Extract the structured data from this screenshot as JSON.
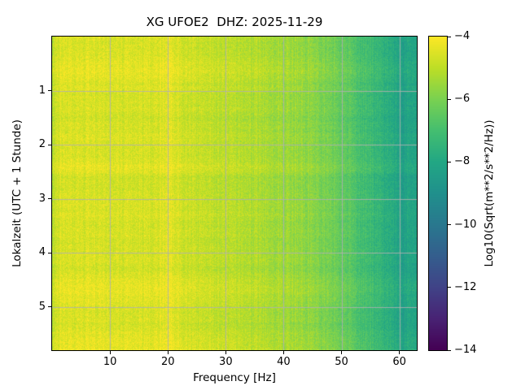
{
  "chart_data": {
    "type": "heatmap",
    "subtype": "spectrogram",
    "title": "XG UFOE2  DHZ: 2025-11-29",
    "xlabel": "Frequency [Hz]",
    "ylabel": "Lokalzeit (UTC + 1 Stunde)",
    "x_range": [
      0,
      63
    ],
    "y_range": [
      0,
      5.8
    ],
    "x_ticks": [
      10,
      20,
      30,
      40,
      50,
      60
    ],
    "x_tick_labels": [
      "10",
      "20",
      "30",
      "40",
      "50",
      "60"
    ],
    "y_ticks": [
      1,
      2,
      3,
      4,
      5
    ],
    "y_tick_labels": [
      "1",
      "2",
      "3",
      "4",
      "5"
    ],
    "grid": true,
    "grid_color": "#b0b0b0",
    "colormap": "viridis",
    "colorbar": {
      "label": "Log10(Sqrt(m**2/s**2/Hz))",
      "position": "right",
      "vmin": -14,
      "vmax": -4,
      "ticks": [
        -4,
        -6,
        -8,
        -10,
        -12,
        -14
      ],
      "tick_labels": [
        "−4",
        "−6",
        "−8",
        "−10",
        "−12",
        "−14"
      ]
    },
    "spectrum_profile": {
      "description": "Time-averaged Log10(Sqrt(m**2/s**2/Hz)) vs frequency, read from the image colors",
      "freqs_hz": [
        0,
        0.8,
        1.5,
        2.5,
        4,
        6,
        8,
        10,
        12,
        14,
        16,
        18,
        19.3,
        20,
        20.7,
        22,
        24,
        27,
        30,
        33,
        36,
        39,
        42,
        45,
        47,
        49,
        51,
        53,
        55,
        57,
        59,
        60,
        60.6,
        61.2,
        62,
        63
      ],
      "log_amplitude": [
        -5.1,
        -4.6,
        -4.45,
        -4.5,
        -4.55,
        -4.5,
        -4.55,
        -4.5,
        -4.55,
        -4.5,
        -4.5,
        -4.55,
        -4.35,
        -4.15,
        -4.35,
        -4.6,
        -4.75,
        -4.85,
        -4.95,
        -5.05,
        -5.15,
        -5.3,
        -5.45,
        -5.7,
        -5.9,
        -6.15,
        -6.45,
        -6.8,
        -7.15,
        -7.5,
        -7.8,
        -7.9,
        -8.4,
        -8.0,
        -8.05,
        -8.1
      ]
    },
    "texture": {
      "pixel_noise": 0.4,
      "column_noise": 0.22,
      "row_drift": 0.25
    }
  },
  "colors": {
    "background": "#ffffff",
    "frame": "#000000",
    "grid": "#b0b0b0"
  }
}
